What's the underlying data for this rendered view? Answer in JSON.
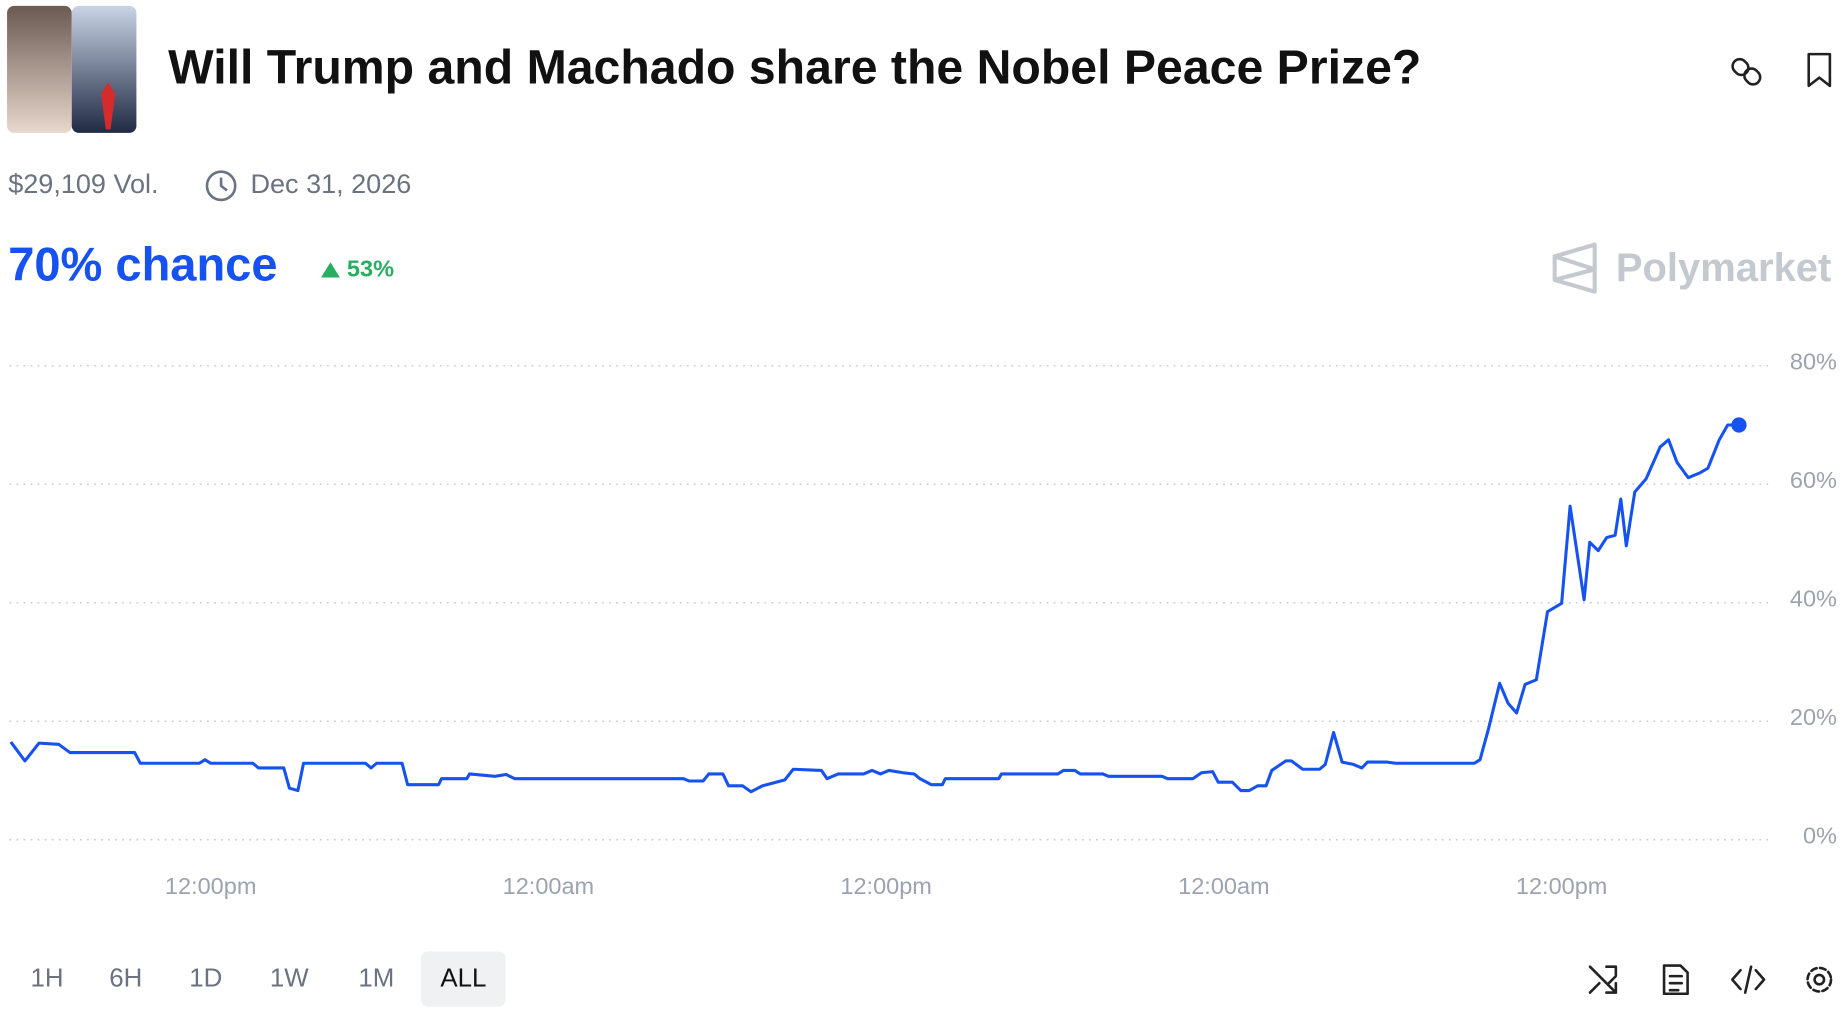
{
  "header": {
    "title": "Will Trump and Machado share the Nobel Peace Prize?",
    "volume": "$29,109 Vol.",
    "end_date": "Dec 31, 2026"
  },
  "chance": {
    "label": "70% chance",
    "change": "53%"
  },
  "brand": "Polymarket",
  "timeframes": [
    "1H",
    "6H",
    "1D",
    "1W",
    "1M",
    "ALL"
  ],
  "selected_timeframe": "ALL",
  "chart_data": {
    "type": "line",
    "color": "#1652f0",
    "grid": true,
    "x": [
      -7.1,
      -6.6,
      -6.1,
      -5.4,
      -5.0,
      -2.7,
      -2.5,
      -0.4,
      -0.2,
      0.0,
      1.5,
      1.7,
      2.6,
      2.8,
      3.1,
      3.3,
      5.5,
      5.7,
      5.9,
      6.8,
      7.0,
      8.1,
      8.2,
      9.1,
      9.2,
      10.1,
      10.5,
      10.8,
      16.8,
      17.0,
      17.5,
      17.7,
      18.2,
      18.4,
      18.9,
      19.2,
      19.6,
      20.4,
      20.7,
      21.7,
      21.9,
      22.3,
      23.2,
      23.5,
      23.8,
      24.1,
      24.6,
      25.0,
      25.2,
      25.6,
      26.0,
      26.1,
      28.0,
      28.1,
      30.1,
      30.3,
      30.7,
      30.9,
      31.7,
      31.9,
      33.8,
      34.0,
      34.9,
      35.2,
      35.6,
      35.8,
      36.3,
      36.6,
      36.9,
      37.2,
      37.5,
      37.7,
      38.2,
      38.4,
      38.8,
      39.4,
      39.6,
      39.9,
      40.2,
      40.6,
      40.9,
      41.1,
      41.8,
      42.1,
      44.9,
      45.1,
      45.4,
      45.8,
      46.1,
      46.4,
      46.7,
      47.1,
      47.5,
      48.0,
      48.3,
      48.8,
      49.0,
      49.3,
      49.6,
      49.9,
      50.1,
      50.3,
      50.6,
      51.0,
      51.5,
      51.8,
      52.1,
      52.5,
      52.9,
      53.2,
      53.6,
      53.9,
      54.3
    ],
    "values": [
      16.5,
      13.3,
      16.3,
      16.1,
      14.7,
      14.7,
      12.9,
      12.9,
      13.5,
      12.9,
      12.9,
      12.1,
      12.1,
      8.7,
      8.3,
      12.9,
      12.9,
      12.1,
      12.9,
      12.9,
      9.3,
      9.3,
      10.3,
      10.3,
      11.1,
      10.7,
      11.0,
      10.3,
      10.3,
      9.9,
      9.9,
      11.1,
      11.1,
      9.1,
      9.1,
      8.1,
      9.1,
      10.1,
      11.9,
      11.7,
      10.3,
      11.1,
      11.1,
      11.7,
      11.1,
      11.7,
      11.3,
      11.1,
      10.3,
      9.3,
      9.3,
      10.3,
      10.3,
      11.1,
      11.1,
      11.7,
      11.7,
      11.1,
      11.1,
      10.7,
      10.7,
      10.3,
      10.3,
      11.3,
      11.5,
      9.7,
      9.7,
      8.3,
      8.3,
      9.1,
      9.1,
      11.7,
      13.3,
      13.3,
      11.9,
      11.9,
      12.7,
      18.1,
      13.1,
      12.7,
      12.1,
      13.1,
      13.1,
      12.9,
      12.9,
      13.5,
      18.7,
      26.4,
      23.0,
      21.4,
      26.2,
      27.0,
      38.5,
      39.9,
      56.3,
      40.5,
      50.2,
      48.8,
      51.0,
      51.4,
      57.5,
      49.6,
      58.7,
      60.9,
      66.3,
      67.5,
      63.7,
      61.1,
      61.9,
      62.7,
      67.5,
      70.0,
      70.0
    ],
    "xlim": [
      -7.15,
      55.4
    ],
    "xticks": [
      {
        "value": 0,
        "label": "12:00pm"
      },
      {
        "value": 12,
        "label": "12:00am"
      },
      {
        "value": 24,
        "label": "12:00pm"
      },
      {
        "value": 36,
        "label": "12:00am"
      },
      {
        "value": 48,
        "label": "12:00pm"
      }
    ],
    "ylim": [
      0,
      80
    ],
    "yticks": [
      {
        "value": 0,
        "label": "0%"
      },
      {
        "value": 20,
        "label": "20%"
      },
      {
        "value": 40,
        "label": "40%"
      },
      {
        "value": 60,
        "label": "60%"
      },
      {
        "value": 80,
        "label": "80%"
      }
    ]
  }
}
